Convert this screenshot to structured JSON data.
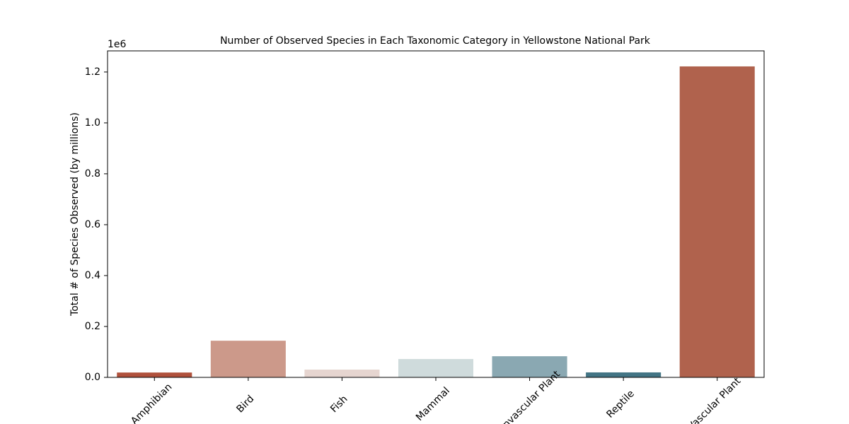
{
  "chart_data": {
    "type": "bar",
    "title": "Number of Observed Species in Each Taxonomic Category in Yellowstone National Park",
    "y_label": "Total # of Species Observed (by millions)",
    "y_offset_label": "1e6",
    "categories": [
      "Amphibian",
      "Bird",
      "Fish",
      "Mammal",
      "Nonvascular Plant",
      "Reptile",
      "Vascular Plant"
    ],
    "values": [
      19000,
      144000,
      30500,
      72000,
      83000,
      19500,
      1222000
    ],
    "colors": [
      "#b0513c",
      "#cc998a",
      "#e6d5d0",
      "#cfdbdc",
      "#8aa8b2",
      "#437585",
      "#b0624d"
    ],
    "ylim": [
      0,
      1283000
    ],
    "yticks": [
      {
        "value": 0,
        "label": "0.0"
      },
      {
        "value": 200000,
        "label": "0.2"
      },
      {
        "value": 400000,
        "label": "0.4"
      },
      {
        "value": 600000,
        "label": "0.6"
      },
      {
        "value": 800000,
        "label": "0.8"
      },
      {
        "value": 1000000,
        "label": "1.0"
      },
      {
        "value": 1200000,
        "label": "1.2"
      }
    ]
  }
}
